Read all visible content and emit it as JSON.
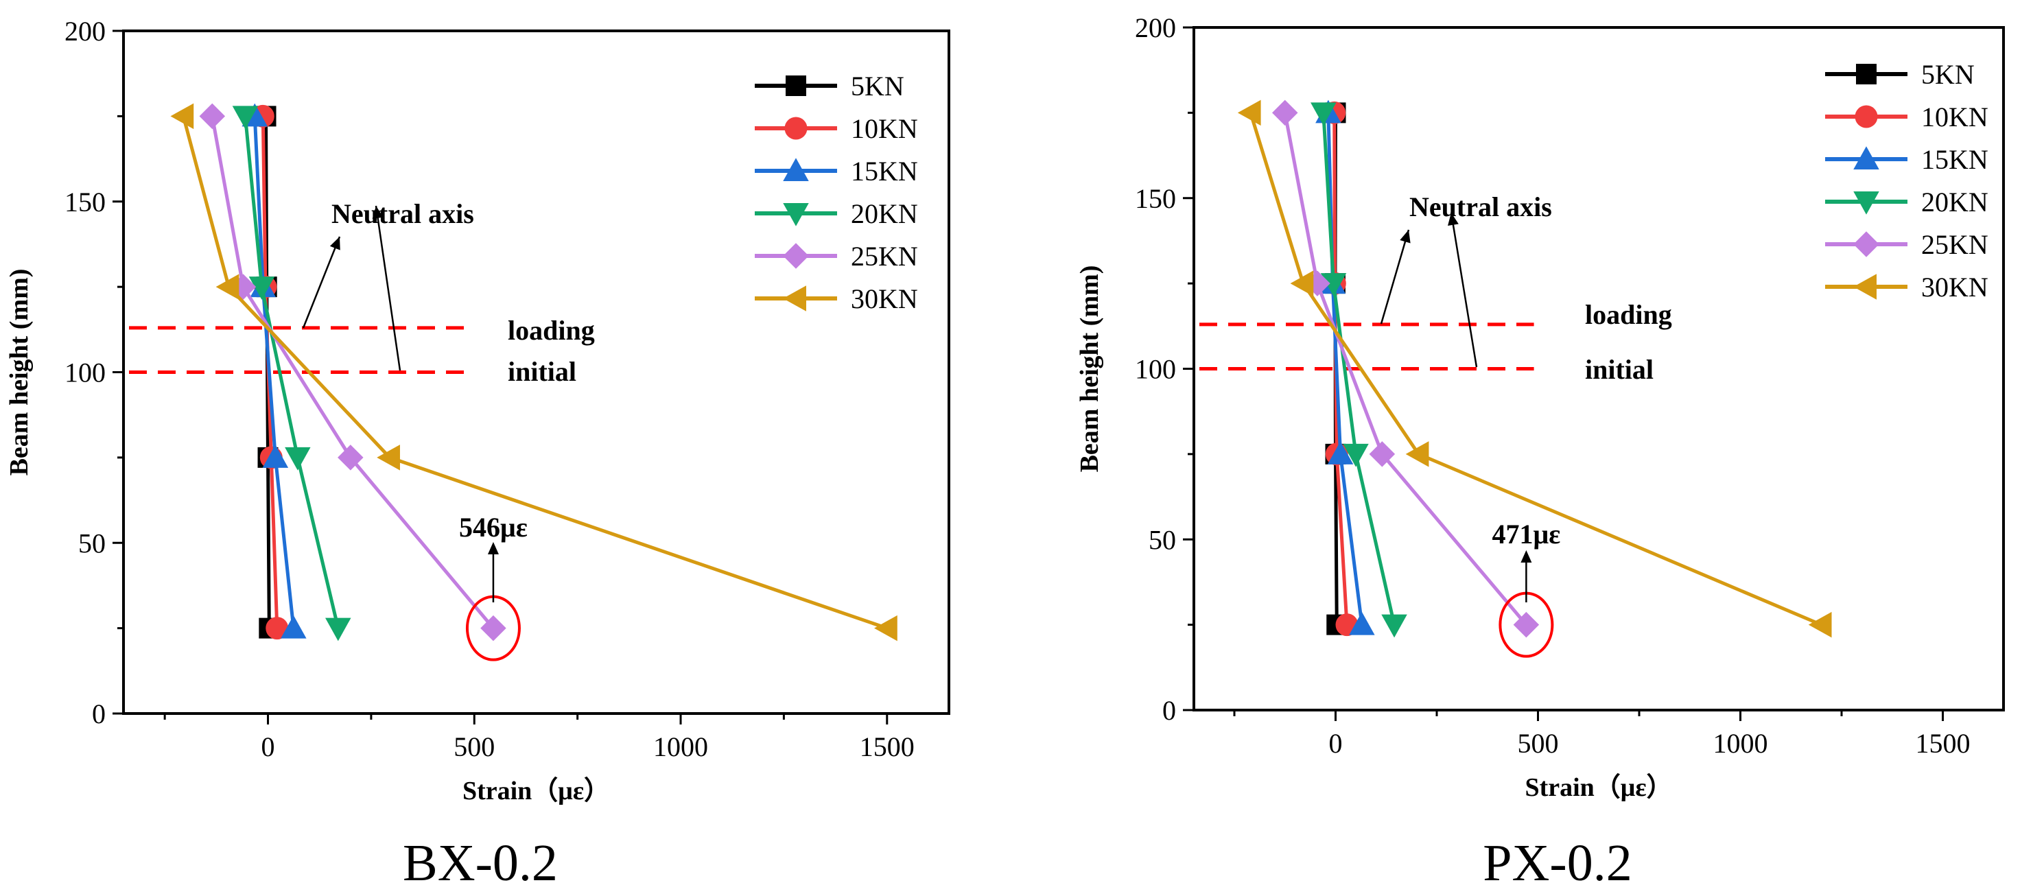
{
  "chart_data": [
    {
      "type": "line",
      "caption": "BX-0.2",
      "xlabel": "Strain（με）",
      "ylabel": "Beam height (mm)",
      "xlim": [
        -350,
        1650
      ],
      "ylim": [
        0,
        200
      ],
      "xticks": [
        "0",
        "500",
        "1000",
        "1500"
      ],
      "yticks": [
        "0",
        "50",
        "100",
        "150",
        "200"
      ],
      "series": [
        {
          "name": "5KN",
          "color": "#000000",
          "marker": "square",
          "x": [
            -5,
            -3,
            0,
            3
          ],
          "y": [
            175,
            125,
            75,
            25
          ]
        },
        {
          "name": "10KN",
          "color": "#f03c3c",
          "marker": "circle",
          "x": [
            -12,
            -6,
            8,
            22
          ],
          "y": [
            175,
            125,
            75,
            25
          ]
        },
        {
          "name": "15KN",
          "color": "#1f6fd6",
          "marker": "triangle-up",
          "x": [
            -32,
            -12,
            18,
            62
          ],
          "y": [
            175,
            125,
            75,
            25
          ]
        },
        {
          "name": "20KN",
          "color": "#13a86b",
          "marker": "triangle-down",
          "x": [
            -55,
            -15,
            72,
            170
          ],
          "y": [
            175,
            125,
            75,
            25
          ]
        },
        {
          "name": "25KN",
          "color": "#c27ee0",
          "marker": "diamond",
          "x": [
            -135,
            -60,
            200,
            546
          ],
          "y": [
            175,
            125,
            75,
            25
          ]
        },
        {
          "name": "30KN",
          "color": "#d69a12",
          "marker": "triangle-left",
          "x": [
            -205,
            -95,
            295,
            1500
          ],
          "y": [
            175,
            125,
            75,
            25
          ]
        }
      ],
      "reference_lines": [
        {
          "label": "loading",
          "y": 113,
          "color": "#ff0000"
        },
        {
          "label": "initial",
          "y": 100,
          "color": "#ff0000"
        }
      ],
      "annotations": {
        "neutral_axis": "Neutral axis",
        "peak_value": "546με",
        "peak_point": [
          546,
          25
        ]
      }
    },
    {
      "type": "line",
      "caption": "PX-0.2",
      "xlabel": "Strain（με）",
      "ylabel": "Beam height (mm)",
      "xlim": [
        -350,
        1650
      ],
      "ylim": [
        0,
        200
      ],
      "xticks": [
        "0",
        "500",
        "1000",
        "1500"
      ],
      "yticks": [
        "0",
        "50",
        "100",
        "150",
        "200"
      ],
      "series": [
        {
          "name": "5KN",
          "color": "#000000",
          "marker": "square",
          "x": [
            0,
            -1,
            0,
            3
          ],
          "y": [
            175,
            125,
            75,
            25
          ]
        },
        {
          "name": "10KN",
          "color": "#f03c3c",
          "marker": "circle",
          "x": [
            -3,
            -2,
            3,
            28
          ],
          "y": [
            175,
            125,
            75,
            25
          ]
        },
        {
          "name": "15KN",
          "color": "#1f6fd6",
          "marker": "triangle-up",
          "x": [
            -18,
            -7,
            12,
            65
          ],
          "y": [
            175,
            125,
            75,
            25
          ]
        },
        {
          "name": "20KN",
          "color": "#13a86b",
          "marker": "triangle-down",
          "x": [
            -30,
            -5,
            50,
            145
          ],
          "y": [
            175,
            125,
            75,
            25
          ]
        },
        {
          "name": "25KN",
          "color": "#c27ee0",
          "marker": "diamond",
          "x": [
            -125,
            -45,
            115,
            471
          ],
          "y": [
            175,
            125,
            75,
            25
          ]
        },
        {
          "name": "30KN",
          "color": "#d69a12",
          "marker": "triangle-left",
          "x": [
            -210,
            -80,
            205,
            1200
          ],
          "y": [
            175,
            125,
            75,
            25
          ]
        }
      ],
      "reference_lines": [
        {
          "label": "loading",
          "y": 113,
          "color": "#ff0000"
        },
        {
          "label": "initial",
          "y": 100,
          "color": "#ff0000"
        }
      ],
      "annotations": {
        "neutral_axis": "Neutral axis",
        "peak_value": "471με",
        "peak_point": [
          471,
          25
        ]
      }
    }
  ]
}
